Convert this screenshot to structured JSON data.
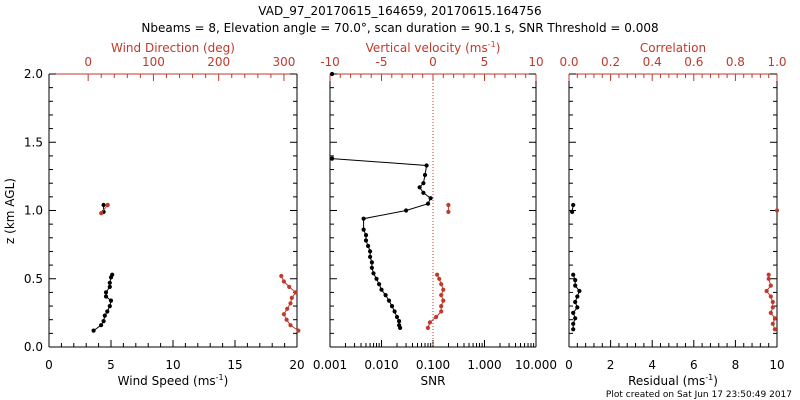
{
  "header": {
    "title_line1": "VAD_97_20170615_164659, 20170615.164756",
    "title_line2": "Nbeams = 8, Elevation angle = 70.0°, scan duration = 90.1 s, SNR Threshold = 0.008"
  },
  "footer": {
    "text": "Plot created on Sat Jun 17 23:50:49 2017"
  },
  "colors": {
    "primary": "#000000",
    "secondary": "#c0392b"
  },
  "chart_data": [
    {
      "type": "line",
      "name": "wind",
      "ylabel": "z (km AGL)",
      "ylim": [
        0,
        2
      ],
      "yticks": [
        "0.0",
        "0.5",
        "1.0",
        "1.5",
        "2.0"
      ],
      "bottom_axis": {
        "label": "Wind Speed (ms",
        "label_sup": "-1",
        "label_end": ")",
        "xlim": [
          0,
          20
        ],
        "ticks": [
          "0",
          "5",
          "10",
          "15",
          "20"
        ]
      },
      "top_axis": {
        "label": "Wind Direction (deg)",
        "xlim": [
          -60,
          320
        ],
        "ticks": [
          "0",
          "100",
          "200",
          "300"
        ],
        "tick_values": [
          0,
          100,
          200,
          300
        ]
      },
      "series": [
        {
          "name": "Wind Speed",
          "axis": "bottom",
          "color": "#000000",
          "segments": [
            [
              [
                4.4,
                0.99
              ],
              [
                4.4,
                1.04
              ]
            ],
            [
              [
                3.6,
                0.12
              ],
              [
                4.2,
                0.16
              ],
              [
                4.4,
                0.19
              ],
              [
                4.5,
                0.23
              ],
              [
                4.7,
                0.26
              ],
              [
                4.9,
                0.3
              ],
              [
                5.0,
                0.34
              ],
              [
                4.6,
                0.37
              ],
              [
                4.6,
                0.4
              ],
              [
                4.9,
                0.44
              ],
              [
                4.9,
                0.47
              ],
              [
                5.0,
                0.51
              ],
              [
                5.1,
                0.53
              ]
            ]
          ]
        },
        {
          "name": "Wind Direction",
          "axis": "top",
          "color": "#c0392b",
          "segments": [
            [
              [
                20,
                0.98
              ],
              [
                30,
                1.04
              ]
            ],
            [
              [
                322,
                0.12
              ],
              [
                310,
                0.16
              ],
              [
                304,
                0.2
              ],
              [
                300,
                0.24
              ],
              [
                305,
                0.28
              ],
              [
                310,
                0.32
              ],
              [
                312,
                0.36
              ],
              [
                318,
                0.4
              ],
              [
                308,
                0.44
              ],
              [
                300,
                0.48
              ],
              [
                296,
                0.52
              ]
            ]
          ]
        }
      ]
    },
    {
      "type": "line",
      "name": "snr-velocity",
      "bottom_axis": {
        "label": "SNR",
        "scale": "log",
        "xlim": [
          0.001,
          10
        ],
        "ticks": [
          "0.001",
          "0.010",
          "0.100",
          "1.000",
          "10.000"
        ]
      },
      "top_axis": {
        "label": "Vertical velocity (ms",
        "label_sup": "-1",
        "label_end": ")",
        "xlim": [
          -10,
          10
        ],
        "ticks": [
          "-10",
          "-5",
          "0",
          "5",
          "10"
        ],
        "tick_values": [
          -10,
          -5,
          0,
          5,
          10
        ]
      },
      "reference_line": {
        "axis": "top",
        "value": 0,
        "style": "dotted",
        "color": "#c0392b"
      },
      "series": [
        {
          "name": "SNR",
          "axis": "bottom",
          "color": "#000000",
          "segments": [
            [
              [
                0.0011,
                2.0
              ]
            ],
            [
              [
                0.0011,
                1.38
              ],
              [
                0.075,
                1.33
              ],
              [
                0.07,
                1.26
              ],
              [
                0.065,
                1.2
              ],
              [
                0.055,
                1.17
              ],
              [
                0.065,
                1.13
              ],
              [
                0.09,
                1.09
              ],
              [
                0.08,
                1.05
              ],
              [
                0.03,
                1.0
              ],
              [
                0.0045,
                0.94
              ],
              [
                0.0045,
                0.86
              ],
              [
                0.005,
                0.82
              ],
              [
                0.005,
                0.78
              ],
              [
                0.0055,
                0.74
              ],
              [
                0.006,
                0.7
              ],
              [
                0.006,
                0.66
              ],
              [
                0.0065,
                0.62
              ],
              [
                0.0065,
                0.58
              ],
              [
                0.007,
                0.54
              ],
              [
                0.008,
                0.5
              ],
              [
                0.009,
                0.46
              ],
              [
                0.01,
                0.42
              ],
              [
                0.012,
                0.38
              ],
              [
                0.014,
                0.34
              ],
              [
                0.016,
                0.3
              ],
              [
                0.018,
                0.26
              ],
              [
                0.02,
                0.22
              ],
              [
                0.022,
                0.19
              ],
              [
                0.022,
                0.16
              ],
              [
                0.023,
                0.14
              ]
            ]
          ]
        },
        {
          "name": "Vertical velocity",
          "axis": "top",
          "color": "#c0392b",
          "segments": [
            [
              [
                1.5,
                0.99
              ],
              [
                1.5,
                1.04
              ]
            ],
            [
              [
                -0.5,
                0.14
              ],
              [
                -0.3,
                0.18
              ],
              [
                0.3,
                0.22
              ],
              [
                0.8,
                0.26
              ],
              [
                0.8,
                0.3
              ],
              [
                1.0,
                0.34
              ],
              [
                0.8,
                0.38
              ],
              [
                1.0,
                0.42
              ],
              [
                0.8,
                0.46
              ],
              [
                0.6,
                0.5
              ],
              [
                0.4,
                0.53
              ]
            ]
          ]
        }
      ]
    },
    {
      "type": "line",
      "name": "residual-correlation",
      "bottom_axis": {
        "label": "Residual (ms",
        "label_sup": "-1",
        "label_end": ")",
        "xlim": [
          0,
          10
        ],
        "ticks": [
          "0",
          "2",
          "4",
          "6",
          "8",
          "10"
        ]
      },
      "top_axis": {
        "label": "Correlation",
        "xlim": [
          0,
          1
        ],
        "ticks": [
          "0.0",
          "0.2",
          "0.4",
          "0.6",
          "0.8",
          "1.0"
        ],
        "tick_values": [
          0,
          0.2,
          0.4,
          0.6,
          0.8,
          1.0
        ]
      },
      "series": [
        {
          "name": "Residual",
          "axis": "bottom",
          "color": "#000000",
          "segments": [
            [
              [
                0.15,
                0.99
              ],
              [
                0.2,
                1.04
              ]
            ],
            [
              [
                0.2,
                0.13
              ],
              [
                0.2,
                0.17
              ],
              [
                0.3,
                0.21
              ],
              [
                0.2,
                0.25
              ],
              [
                0.4,
                0.29
              ],
              [
                0.3,
                0.33
              ],
              [
                0.4,
                0.37
              ],
              [
                0.5,
                0.41
              ],
              [
                0.3,
                0.45
              ],
              [
                0.3,
                0.49
              ],
              [
                0.2,
                0.53
              ]
            ]
          ]
        },
        {
          "name": "Correlation",
          "axis": "top",
          "color": "#c0392b",
          "segments": [
            [
              [
                1.0,
                1.0
              ]
            ],
            [
              [
                0.99,
                0.13
              ],
              [
                0.98,
                0.17
              ],
              [
                0.99,
                0.21
              ],
              [
                0.97,
                0.25
              ],
              [
                0.98,
                0.29
              ],
              [
                0.98,
                0.33
              ],
              [
                0.97,
                0.37
              ],
              [
                0.95,
                0.41
              ],
              [
                0.97,
                0.45
              ],
              [
                0.96,
                0.5
              ],
              [
                0.96,
                0.53
              ]
            ]
          ]
        }
      ]
    }
  ]
}
